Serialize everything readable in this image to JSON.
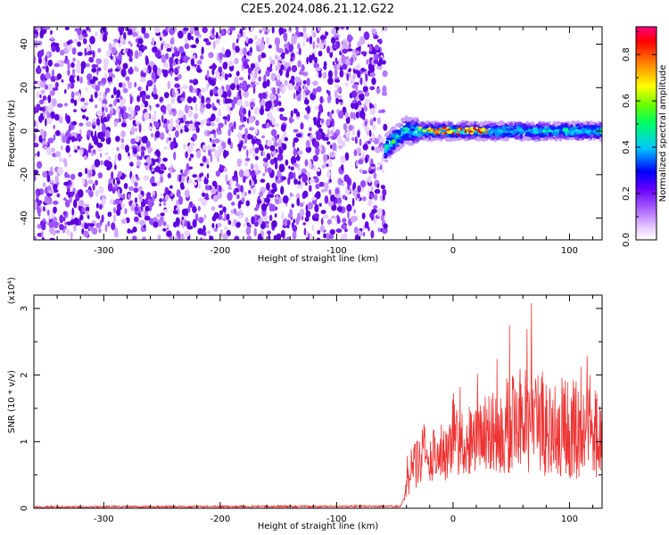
{
  "title": "C2E5.2024.086.21.12.G22",
  "chart_data": [
    {
      "type": "heatmap",
      "xlabel": "Height of straight line (km)",
      "ylabel": "Frequency (Hz)",
      "xlim": [
        -360,
        128
      ],
      "ylim": [
        -50,
        48
      ],
      "x_ticks": [
        -300,
        -200,
        -100,
        0,
        100
      ],
      "y_ticks": [
        -40,
        -20,
        0,
        20,
        40
      ],
      "noise_region_x": [
        -360,
        -58
      ],
      "signal_region_x": [
        -58,
        128
      ],
      "signal_frequency_hz": 0,
      "colorbar": {
        "label": "Normalized spectral amplitude",
        "range": [
          0.0,
          0.92
        ],
        "ticks": [
          0.0,
          0.2,
          0.4,
          0.6,
          0.8
        ],
        "colors": [
          "#ffffff",
          "#e6c8ff",
          "#a050ff",
          "#6400ff",
          "#0000ff",
          "#00c8ff",
          "#00ff64",
          "#64ff00",
          "#ffff00",
          "#ff8000",
          "#ff0000",
          "#ff0080"
        ]
      }
    },
    {
      "type": "line",
      "xlabel": "Height of straight line (km)",
      "ylabel": "SNR (10 * v/v)",
      "y_multiplier": "(x10⁴)",
      "xlim": [
        -360,
        128
      ],
      "ylim": [
        0,
        3.2
      ],
      "x_ticks": [
        -300,
        -200,
        -100,
        0,
        100
      ],
      "y_ticks": [
        0,
        1,
        2,
        3
      ],
      "color": "#ee3333",
      "x": [
        -360,
        -45,
        -40,
        -35,
        -30,
        -20,
        -10,
        0,
        10,
        20,
        30,
        40,
        50,
        60,
        70,
        80,
        90,
        100,
        110,
        120,
        128
      ],
      "y": [
        0.02,
        0.03,
        0.25,
        0.6,
        0.65,
        0.75,
        0.8,
        0.85,
        0.95,
        1.0,
        1.05,
        1.1,
        1.15,
        1.2,
        1.2,
        1.2,
        1.15,
        1.1,
        1.1,
        1.05,
        1.0
      ],
      "spread": [
        0.02,
        0.03,
        0.4,
        0.7,
        0.8,
        0.8,
        0.9,
        0.9,
        1.0,
        1.1,
        1.2,
        1.3,
        1.5,
        1.6,
        1.7,
        1.6,
        1.6,
        1.5,
        1.5,
        1.4,
        1.2
      ]
    }
  ]
}
